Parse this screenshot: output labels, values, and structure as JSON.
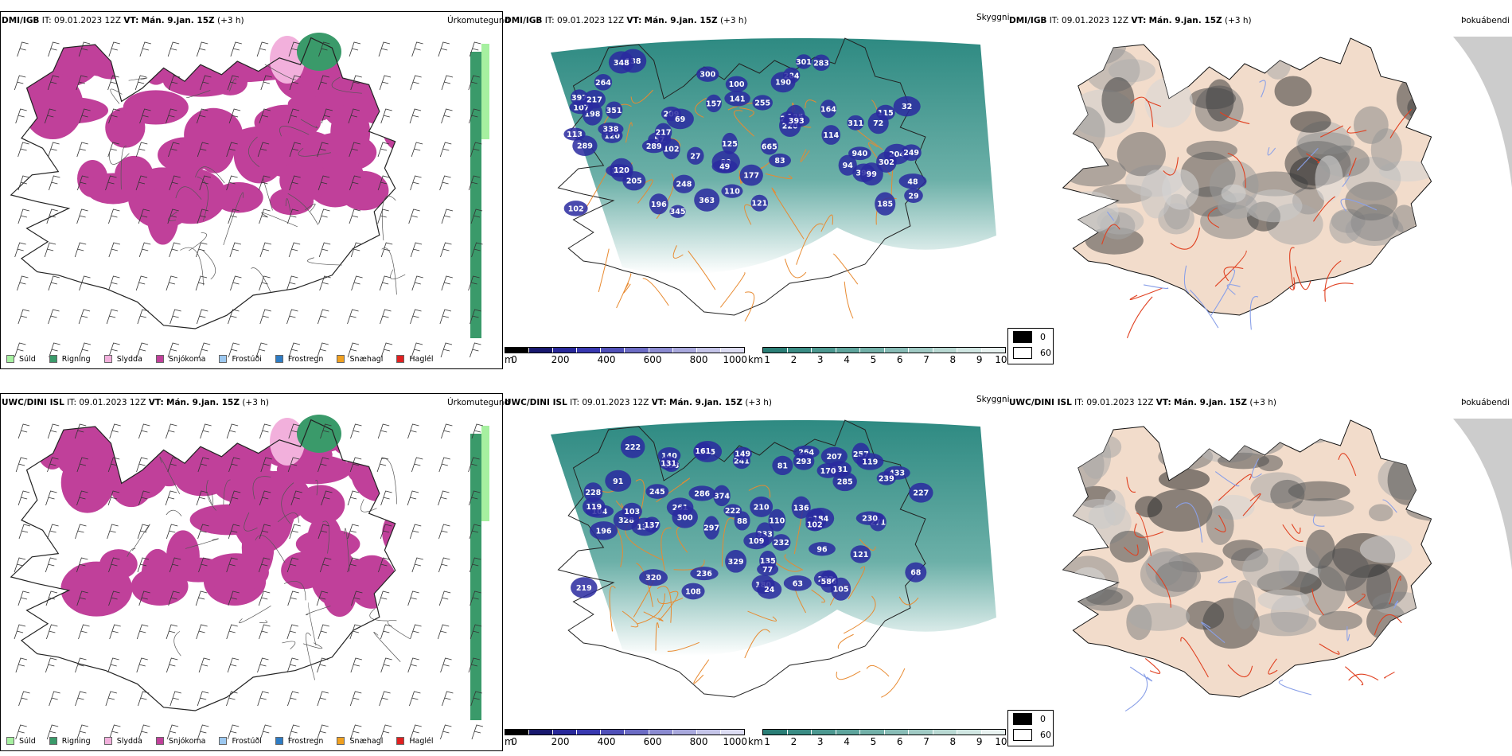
{
  "rows": [
    {
      "model": "DMI/IGB",
      "it_label": "IT:",
      "it_value": "09.01.2023 12Z",
      "vt_label": "VT:",
      "vt_value": "Mán. 9.jan. 15Z",
      "lead": "(+3 h)",
      "precip_title": "Úrkomutegund",
      "cloud_title": "Skyggni",
      "fog_title": "Þokuábendi",
      "cloud_labels": [
        {
          "t": "162"
        },
        {
          "t": "255"
        },
        {
          "t": "114"
        },
        {
          "t": "185"
        },
        {
          "t": "311"
        },
        {
          "t": "120"
        },
        {
          "t": "209"
        },
        {
          "t": "204"
        },
        {
          "t": "102"
        },
        {
          "t": "249"
        },
        {
          "t": "665"
        },
        {
          "t": "397"
        },
        {
          "t": "253"
        },
        {
          "t": "363"
        },
        {
          "t": "110"
        },
        {
          "t": "115"
        },
        {
          "t": "198"
        },
        {
          "t": "940"
        },
        {
          "t": "100"
        },
        {
          "t": "57"
        },
        {
          "t": "83"
        },
        {
          "t": "113"
        },
        {
          "t": "284"
        },
        {
          "t": "89"
        },
        {
          "t": "138"
        },
        {
          "t": "99"
        },
        {
          "t": "107"
        },
        {
          "t": "185"
        },
        {
          "t": "190"
        },
        {
          "t": "397"
        },
        {
          "t": "217"
        },
        {
          "t": "121"
        },
        {
          "t": "264"
        },
        {
          "t": "351"
        },
        {
          "t": "248"
        },
        {
          "t": "302"
        },
        {
          "t": "141"
        },
        {
          "t": "220"
        },
        {
          "t": "120"
        },
        {
          "t": "94"
        },
        {
          "t": "338"
        },
        {
          "t": "157"
        },
        {
          "t": "164"
        },
        {
          "t": "125"
        },
        {
          "t": "49"
        },
        {
          "t": "48"
        },
        {
          "t": "69"
        },
        {
          "t": "72"
        },
        {
          "t": "205"
        },
        {
          "t": "27"
        },
        {
          "t": "300"
        },
        {
          "t": "102"
        },
        {
          "t": "196"
        },
        {
          "t": "393"
        },
        {
          "t": "348"
        },
        {
          "t": "301"
        },
        {
          "t": "345"
        },
        {
          "t": "289"
        },
        {
          "t": "217"
        },
        {
          "t": "289"
        },
        {
          "t": "32"
        },
        {
          "t": "283"
        },
        {
          "t": "177"
        },
        {
          "t": "29"
        }
      ]
    },
    {
      "model": "UWC/DINI ISL",
      "it_label": "IT:",
      "it_value": "09.01.2023 12Z",
      "vt_label": "VT:",
      "vt_value": "Mán. 9.jan. 15Z",
      "lead": "(+3 h)",
      "precip_title": "Úrkomutegund",
      "cloud_title": "Skyggni",
      "fog_title": "Þokuábendi",
      "cloud_labels": [
        {
          "t": "374"
        },
        {
          "t": "257"
        },
        {
          "t": "207"
        },
        {
          "t": "433"
        },
        {
          "t": "245"
        },
        {
          "t": "264"
        },
        {
          "t": "233"
        },
        {
          "t": "329"
        },
        {
          "t": "227"
        },
        {
          "t": "241"
        },
        {
          "t": "586"
        },
        {
          "t": "297"
        },
        {
          "t": "271"
        },
        {
          "t": "119"
        },
        {
          "t": "210"
        },
        {
          "t": "135"
        },
        {
          "t": "149"
        },
        {
          "t": "196"
        },
        {
          "t": "134"
        },
        {
          "t": "261"
        },
        {
          "t": "96"
        },
        {
          "t": "88"
        },
        {
          "t": "68"
        },
        {
          "t": "104"
        },
        {
          "t": "228"
        },
        {
          "t": "222"
        },
        {
          "t": "230"
        },
        {
          "t": "232"
        },
        {
          "t": "333"
        },
        {
          "t": "244"
        },
        {
          "t": "131"
        },
        {
          "t": "285"
        },
        {
          "t": "653"
        },
        {
          "t": "137"
        },
        {
          "t": "109"
        },
        {
          "t": "140"
        },
        {
          "t": "136"
        },
        {
          "t": "222"
        },
        {
          "t": "108"
        },
        {
          "t": "184"
        },
        {
          "t": "245"
        },
        {
          "t": "328"
        },
        {
          "t": "119"
        },
        {
          "t": "180"
        },
        {
          "t": "286"
        },
        {
          "t": "236"
        },
        {
          "t": "219"
        },
        {
          "t": "293"
        },
        {
          "t": "300"
        },
        {
          "t": "161"
        },
        {
          "t": "102"
        },
        {
          "t": "24"
        },
        {
          "t": "320"
        },
        {
          "t": "91"
        },
        {
          "t": "105"
        },
        {
          "t": "131"
        },
        {
          "t": "63"
        },
        {
          "t": "81"
        },
        {
          "t": "103"
        },
        {
          "t": "239"
        },
        {
          "t": "170"
        },
        {
          "t": "110"
        },
        {
          "t": "77"
        },
        {
          "t": "121"
        }
      ]
    }
  ],
  "precip_legend": [
    {
      "label": "Súld",
      "color": "#a6f0a0"
    },
    {
      "label": "Rigning",
      "color": "#3a9a6a"
    },
    {
      "label": "Slydda",
      "color": "#f2b0dc"
    },
    {
      "label": "Snjókoma",
      "color": "#c0409a"
    },
    {
      "label": "Frostúði",
      "color": "#9cc8f0"
    },
    {
      "label": "Frostregn",
      "color": "#2e7cc4"
    },
    {
      "label": "Snæhagl",
      "color": "#f0a020"
    },
    {
      "label": "Haglél",
      "color": "#e02020"
    }
  ],
  "colors": {
    "snow": "#c0409a",
    "sleet": "#f2b0dc",
    "rain": "#3a9a6a",
    "drizzle": "#a6f0a0",
    "freezing_rain": "#2e7cc4",
    "teal": "#3a9a90",
    "cloud_blue": "#2a2aa0",
    "road_orange": "#e88a30",
    "fog_land": "#f2dccb",
    "road_red": "#e04020"
  },
  "cloud_base_scale": {
    "unit": "m",
    "ticks": [
      "0",
      "200",
      "400",
      "600",
      "800",
      "1000"
    ],
    "colors": [
      "#000000",
      "#18186e",
      "#28289a",
      "#3838b0",
      "#5050b8",
      "#6c6cc4",
      "#8a8ad0",
      "#a8a8dc",
      "#c4c4e8",
      "#dcdcf2"
    ]
  },
  "visibility_scale": {
    "unit": "km",
    "ticks": [
      "1",
      "2",
      "3",
      "4",
      "5",
      "6",
      "7",
      "8",
      "9",
      "10"
    ],
    "colors": [
      "#2a7e76",
      "#3a8c84",
      "#4c9890",
      "#5ea49c",
      "#72b0a8",
      "#88bcb6",
      "#a0cac4",
      "#b8d8d2",
      "#d0e6e2",
      "#e8f2f0"
    ]
  },
  "fog_legend": [
    {
      "label": "0",
      "color": "#000000"
    },
    {
      "label": "60",
      "color": "#ffffff"
    }
  ]
}
